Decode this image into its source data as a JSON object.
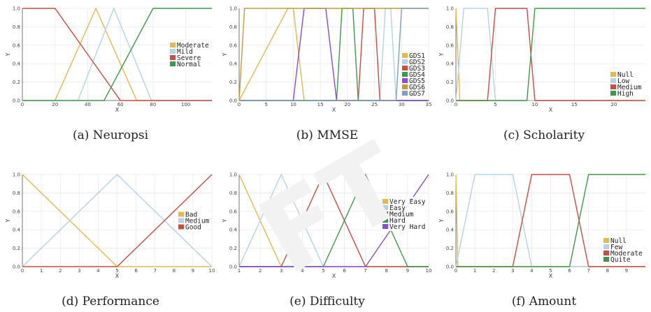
{
  "palette": [
    "#e6b94c",
    "#b3d3ea",
    "#cc4c42",
    "#3f9a48",
    "#8b4bd8",
    "#c89a38",
    "#7f9fbf"
  ],
  "chart_data": [
    {
      "type": "line",
      "caption": "(a) Neuropsi",
      "xlabel": "X",
      "ylabel": "Y",
      "xlim": [
        0,
        116
      ],
      "ylim": [
        0,
        1
      ],
      "xticks": [
        0,
        20,
        40,
        60,
        80,
        100
      ],
      "yticks": [
        0.0,
        0.2,
        0.4,
        0.6,
        0.8,
        1.0
      ],
      "legend_position": "center-right",
      "series": [
        {
          "name": "Moderate",
          "x": [
            0,
            20,
            45,
            70,
            116
          ],
          "y": [
            0,
            0,
            1,
            0,
            0
          ]
        },
        {
          "name": "Mild",
          "x": [
            0,
            34,
            56,
            79,
            116
          ],
          "y": [
            0,
            0,
            1,
            0,
            0
          ]
        },
        {
          "name": "Severe",
          "x": [
            0,
            10,
            20,
            60,
            116
          ],
          "y": [
            1,
            1,
            1,
            0,
            0
          ]
        },
        {
          "name": "Normal",
          "x": [
            0,
            50,
            80,
            116
          ],
          "y": [
            0,
            0,
            1,
            1
          ]
        }
      ]
    },
    {
      "type": "line",
      "caption": "(b) MMSE",
      "xlabel": "X",
      "ylabel": "Y",
      "xlim": [
        0,
        35
      ],
      "ylim": [
        0,
        1
      ],
      "xticks": [
        0,
        5,
        10,
        15,
        20,
        25,
        30,
        35
      ],
      "yticks": [
        0.0,
        0.2,
        0.4,
        0.6,
        0.8,
        1.0
      ],
      "legend_position": "bottom-right",
      "series": [
        {
          "name": "GDS1",
          "x": [
            0,
            9,
            10,
            12,
            13,
            35
          ],
          "y": [
            0,
            1,
            1,
            0,
            0,
            0
          ]
        },
        {
          "name": "GDS2",
          "x": [
            0,
            26,
            27,
            28,
            29,
            35
          ],
          "y": [
            0,
            0,
            1,
            1,
            0,
            0
          ]
        },
        {
          "name": "GDS3",
          "x": [
            0,
            22,
            23,
            25,
            26,
            35
          ],
          "y": [
            0,
            0,
            1,
            1,
            0,
            0
          ]
        },
        {
          "name": "GDS4",
          "x": [
            0,
            18,
            19,
            21,
            22,
            35
          ],
          "y": [
            0,
            0,
            1,
            1,
            0,
            0
          ]
        },
        {
          "name": "GDS5",
          "x": [
            0,
            10,
            12,
            16,
            18,
            35
          ],
          "y": [
            0,
            0,
            1,
            1,
            0,
            0
          ]
        },
        {
          "name": "GDS6",
          "x": [
            0,
            1,
            9,
            35
          ],
          "y": [
            0,
            1,
            1,
            1
          ]
        },
        {
          "name": "GDS7",
          "x": [
            0,
            29,
            30,
            35
          ],
          "y": [
            0,
            0,
            1,
            1
          ]
        }
      ]
    },
    {
      "type": "line",
      "caption": "(c) Scholarity",
      "xlabel": "X",
      "ylabel": "Y",
      "xlim": [
        0,
        24
      ],
      "ylim": [
        0,
        1
      ],
      "xticks": [
        0,
        5,
        10,
        15,
        20
      ],
      "yticks": [
        0.0,
        0.2,
        0.4,
        0.6,
        0.8,
        1.0
      ],
      "legend_position": "bottom-right",
      "series": [
        {
          "name": "Null",
          "x": [
            0,
            0.5,
            24
          ],
          "y": [
            1,
            0,
            0
          ]
        },
        {
          "name": "Low",
          "x": [
            0,
            1,
            4,
            5,
            24
          ],
          "y": [
            0,
            1,
            1,
            0,
            0
          ]
        },
        {
          "name": "Medium",
          "x": [
            0,
            4,
            5,
            9,
            10,
            24
          ],
          "y": [
            0,
            0,
            1,
            1,
            0,
            0
          ]
        },
        {
          "name": "High",
          "x": [
            0,
            9,
            10,
            24
          ],
          "y": [
            0,
            0,
            1,
            1
          ]
        }
      ]
    },
    {
      "type": "line",
      "caption": "(d) Performance",
      "xlabel": "X",
      "ylabel": "Y",
      "xlim": [
        0,
        10
      ],
      "ylim": [
        0,
        1
      ],
      "xticks": [
        0,
        1,
        2,
        3,
        4,
        5,
        6,
        7,
        8,
        9,
        10
      ],
      "yticks": [
        0.0,
        0.2,
        0.4,
        0.6,
        0.8,
        1.0
      ],
      "legend_position": "center-right",
      "series": [
        {
          "name": "Bad",
          "x": [
            0,
            5,
            10
          ],
          "y": [
            1,
            0,
            0
          ]
        },
        {
          "name": "Medium",
          "x": [
            0,
            5,
            10
          ],
          "y": [
            0,
            1,
            0
          ]
        },
        {
          "name": "Good",
          "x": [
            0,
            5,
            10
          ],
          "y": [
            0,
            0,
            1
          ]
        }
      ]
    },
    {
      "type": "line",
      "caption": "(e) Difficulty",
      "xlabel": "X",
      "ylabel": "Y",
      "xlim": [
        1,
        10
      ],
      "ylim": [
        0,
        1
      ],
      "xticks": [
        1,
        2,
        3,
        4,
        5,
        6,
        7,
        8,
        9,
        10
      ],
      "yticks": [
        0.0,
        0.2,
        0.4,
        0.6,
        0.8,
        1.0
      ],
      "legend_position": "center-right",
      "series": [
        {
          "name": "Very Easy",
          "x": [
            1,
            3,
            10
          ],
          "y": [
            1,
            0,
            0
          ]
        },
        {
          "name": "Easy",
          "x": [
            1,
            3,
            5,
            10
          ],
          "y": [
            0,
            1,
            0,
            0
          ]
        },
        {
          "name": "Medium",
          "x": [
            1,
            3,
            5,
            7,
            10
          ],
          "y": [
            0,
            0,
            1,
            0,
            0
          ]
        },
        {
          "name": "Hard",
          "x": [
            1,
            5,
            7,
            9,
            10
          ],
          "y": [
            0,
            0,
            1,
            0,
            0
          ]
        },
        {
          "name": "Very Hard",
          "x": [
            1,
            7,
            10
          ],
          "y": [
            0,
            0,
            1
          ]
        }
      ]
    },
    {
      "type": "line",
      "caption": "(f) Amount",
      "xlabel": "X",
      "ylabel": "Y",
      "xlim": [
        0,
        10
      ],
      "ylim": [
        0,
        1
      ],
      "xticks": [
        0,
        1,
        2,
        3,
        4,
        5,
        6,
        7,
        8,
        9
      ],
      "yticks": [
        0.0,
        0.2,
        0.4,
        0.6,
        0.8,
        1.0
      ],
      "legend_position": "bottom-right",
      "series": [
        {
          "name": "Null",
          "x": [
            0,
            0.1,
            10
          ],
          "y": [
            1,
            0,
            0
          ]
        },
        {
          "name": "Few",
          "x": [
            0,
            1,
            3,
            4,
            10
          ],
          "y": [
            0,
            1,
            1,
            0,
            0
          ]
        },
        {
          "name": "Moderate",
          "x": [
            0,
            3,
            4,
            6,
            7,
            10
          ],
          "y": [
            0,
            0,
            1,
            1,
            0,
            0
          ]
        },
        {
          "name": "Quite",
          "x": [
            0,
            6,
            7,
            10
          ],
          "y": [
            0,
            0,
            1,
            1
          ]
        }
      ]
    }
  ]
}
